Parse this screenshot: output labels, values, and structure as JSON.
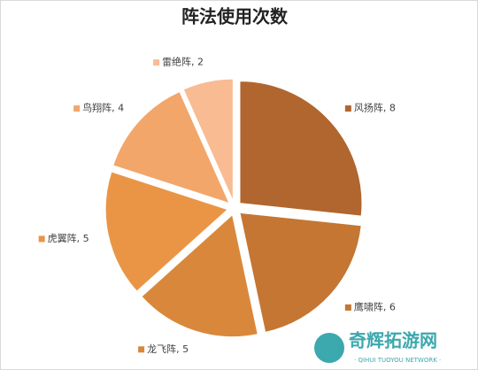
{
  "chart_data": {
    "type": "pie",
    "title": "阵法使用次数",
    "values": [
      8,
      6,
      5,
      5,
      4,
      2
    ],
    "value_labels": [
      "风扬阵, 8",
      "鹰啸阵, 6",
      "龙飞阵, 5",
      "虎翼阵, 5",
      "鸟翔阵, 4",
      "雷绝阵, 2"
    ],
    "colors": [
      "#b0662e",
      "#c47632",
      "#d9883b",
      "#ea9546",
      "#f2a66a",
      "#f8bb92"
    ],
    "watermark": "奇辉拓游网",
    "watermark_subtitle": "· QIHUI TUOYOU NETWORK ·"
  }
}
